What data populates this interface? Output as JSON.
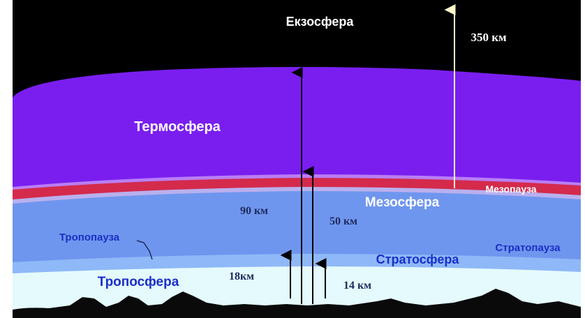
{
  "layers": {
    "exosphere": {
      "label": "Екзосфера",
      "color": "#000000"
    },
    "thermosphere": {
      "label": "Термосфера",
      "color": "#7a1ef0"
    },
    "mesopause": {
      "label": "Мезопауза",
      "color": "#d42a4c"
    },
    "mesosphere": {
      "label": "Мезосфера",
      "color": "#6f96ee"
    },
    "stratopause": {
      "label": "Стратопауза"
    },
    "stratosphere": {
      "label": "Стратосфера",
      "color": "#8fb8f8"
    },
    "tropopause": {
      "label": "Тропопауза"
    },
    "troposphere": {
      "label": "Тропосфера",
      "color": "#e4fafd"
    }
  },
  "altitudes": {
    "exosphere_base": "350 км",
    "mesopause": "90 км",
    "stratopause": "50 км",
    "tropopause_equator": "18км",
    "tropopause_poles": "14 км"
  },
  "colors": {
    "label_blue": "#1a2fc8",
    "label_white": "#ffffff",
    "label_dark": "#1e2a5c",
    "ground": "#0a0a0a"
  }
}
